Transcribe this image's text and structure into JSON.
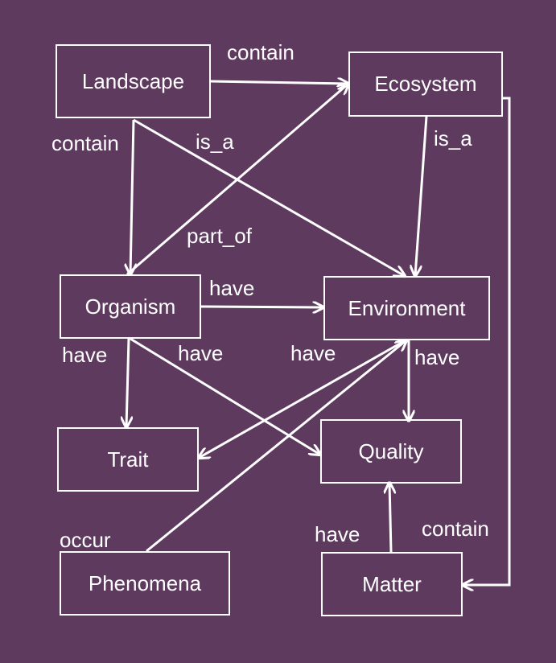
{
  "colors": {
    "background": "#5e3a5f",
    "stroke": "#ffffff",
    "text": "#ffffff"
  },
  "nodes": {
    "landscape": "Landscape",
    "ecosystem": "Ecosystem",
    "organism": "Organism",
    "environment": "Environment",
    "trait": "Trait",
    "quality": "Quality",
    "phenomena": "Phenomena",
    "matter": "Matter"
  },
  "edges": {
    "landscape_ecosystem": "contain",
    "landscape_organism": "contain",
    "landscape_environment": "is_a",
    "ecosystem_environment": "is_a",
    "organism_ecosystem": "part_of",
    "organism_environment": "have",
    "organism_trait": "have",
    "organism_quality": "have",
    "environment_trait": "have",
    "environment_quality": "have",
    "phenomena_environment": "occur",
    "matter_quality": "have",
    "ecosystem_matter": "contain"
  }
}
